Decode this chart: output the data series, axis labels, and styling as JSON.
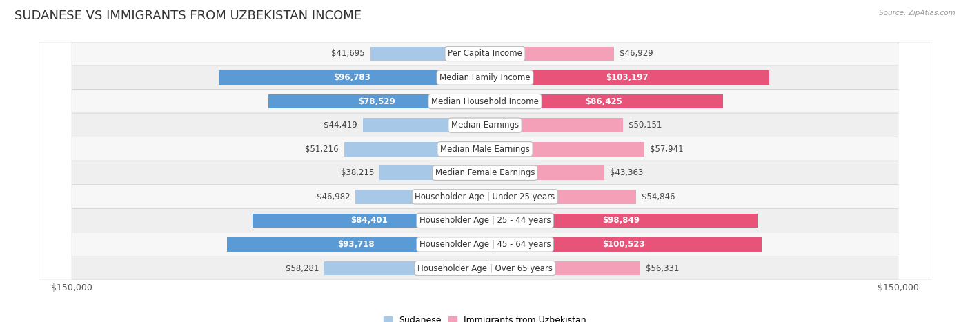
{
  "title": "SUDANESE VS IMMIGRANTS FROM UZBEKISTAN INCOME",
  "source": "Source: ZipAtlas.com",
  "categories": [
    "Per Capita Income",
    "Median Family Income",
    "Median Household Income",
    "Median Earnings",
    "Median Male Earnings",
    "Median Female Earnings",
    "Householder Age | Under 25 years",
    "Householder Age | 25 - 44 years",
    "Householder Age | 45 - 64 years",
    "Householder Age | Over 65 years"
  ],
  "sudanese_values": [
    41695,
    96783,
    78529,
    44419,
    51216,
    38215,
    46982,
    84401,
    93718,
    58281
  ],
  "uzbekistan_values": [
    46929,
    103197,
    86425,
    50151,
    57941,
    43363,
    54846,
    98849,
    100523,
    56331
  ],
  "sudanese_labels": [
    "$41,695",
    "$96,783",
    "$78,529",
    "$44,419",
    "$51,216",
    "$38,215",
    "$46,982",
    "$84,401",
    "$93,718",
    "$58,281"
  ],
  "uzbekistan_labels": [
    "$46,929",
    "$103,197",
    "$86,425",
    "$50,151",
    "$57,941",
    "$43,363",
    "$54,846",
    "$98,849",
    "$100,523",
    "$56,331"
  ],
  "sudanese_inside": [
    false,
    true,
    true,
    false,
    false,
    false,
    false,
    true,
    true,
    false
  ],
  "uzbekistan_inside": [
    false,
    true,
    true,
    false,
    false,
    false,
    false,
    true,
    true,
    false
  ],
  "max_value": 150000,
  "color_sudanese_light": "#a8c8e8",
  "color_sudanese_dark": "#5b9bd5",
  "color_uzbekistan_light": "#f4a0b8",
  "color_uzbekistan_dark": "#e8537a",
  "sudanese_dark": [
    false,
    true,
    true,
    false,
    false,
    false,
    false,
    true,
    true,
    false
  ],
  "uzbekistan_dark": [
    false,
    true,
    true,
    false,
    false,
    false,
    false,
    true,
    true,
    false
  ],
  "bg_color": "#ffffff",
  "row_bg_color": "#f2f2f2",
  "plot_bg": "#ffffff",
  "border_color": "#d0d0d0",
  "legend_label_sudanese": "Sudanese",
  "legend_label_uzbekistan": "Immigrants from Uzbekistan",
  "bar_height": 0.6,
  "xlim": 150000,
  "title_fontsize": 13,
  "label_fontsize": 8.5,
  "cat_fontsize": 8.5,
  "axis_label_fontsize": 9,
  "inside_label_threshold": 65000
}
